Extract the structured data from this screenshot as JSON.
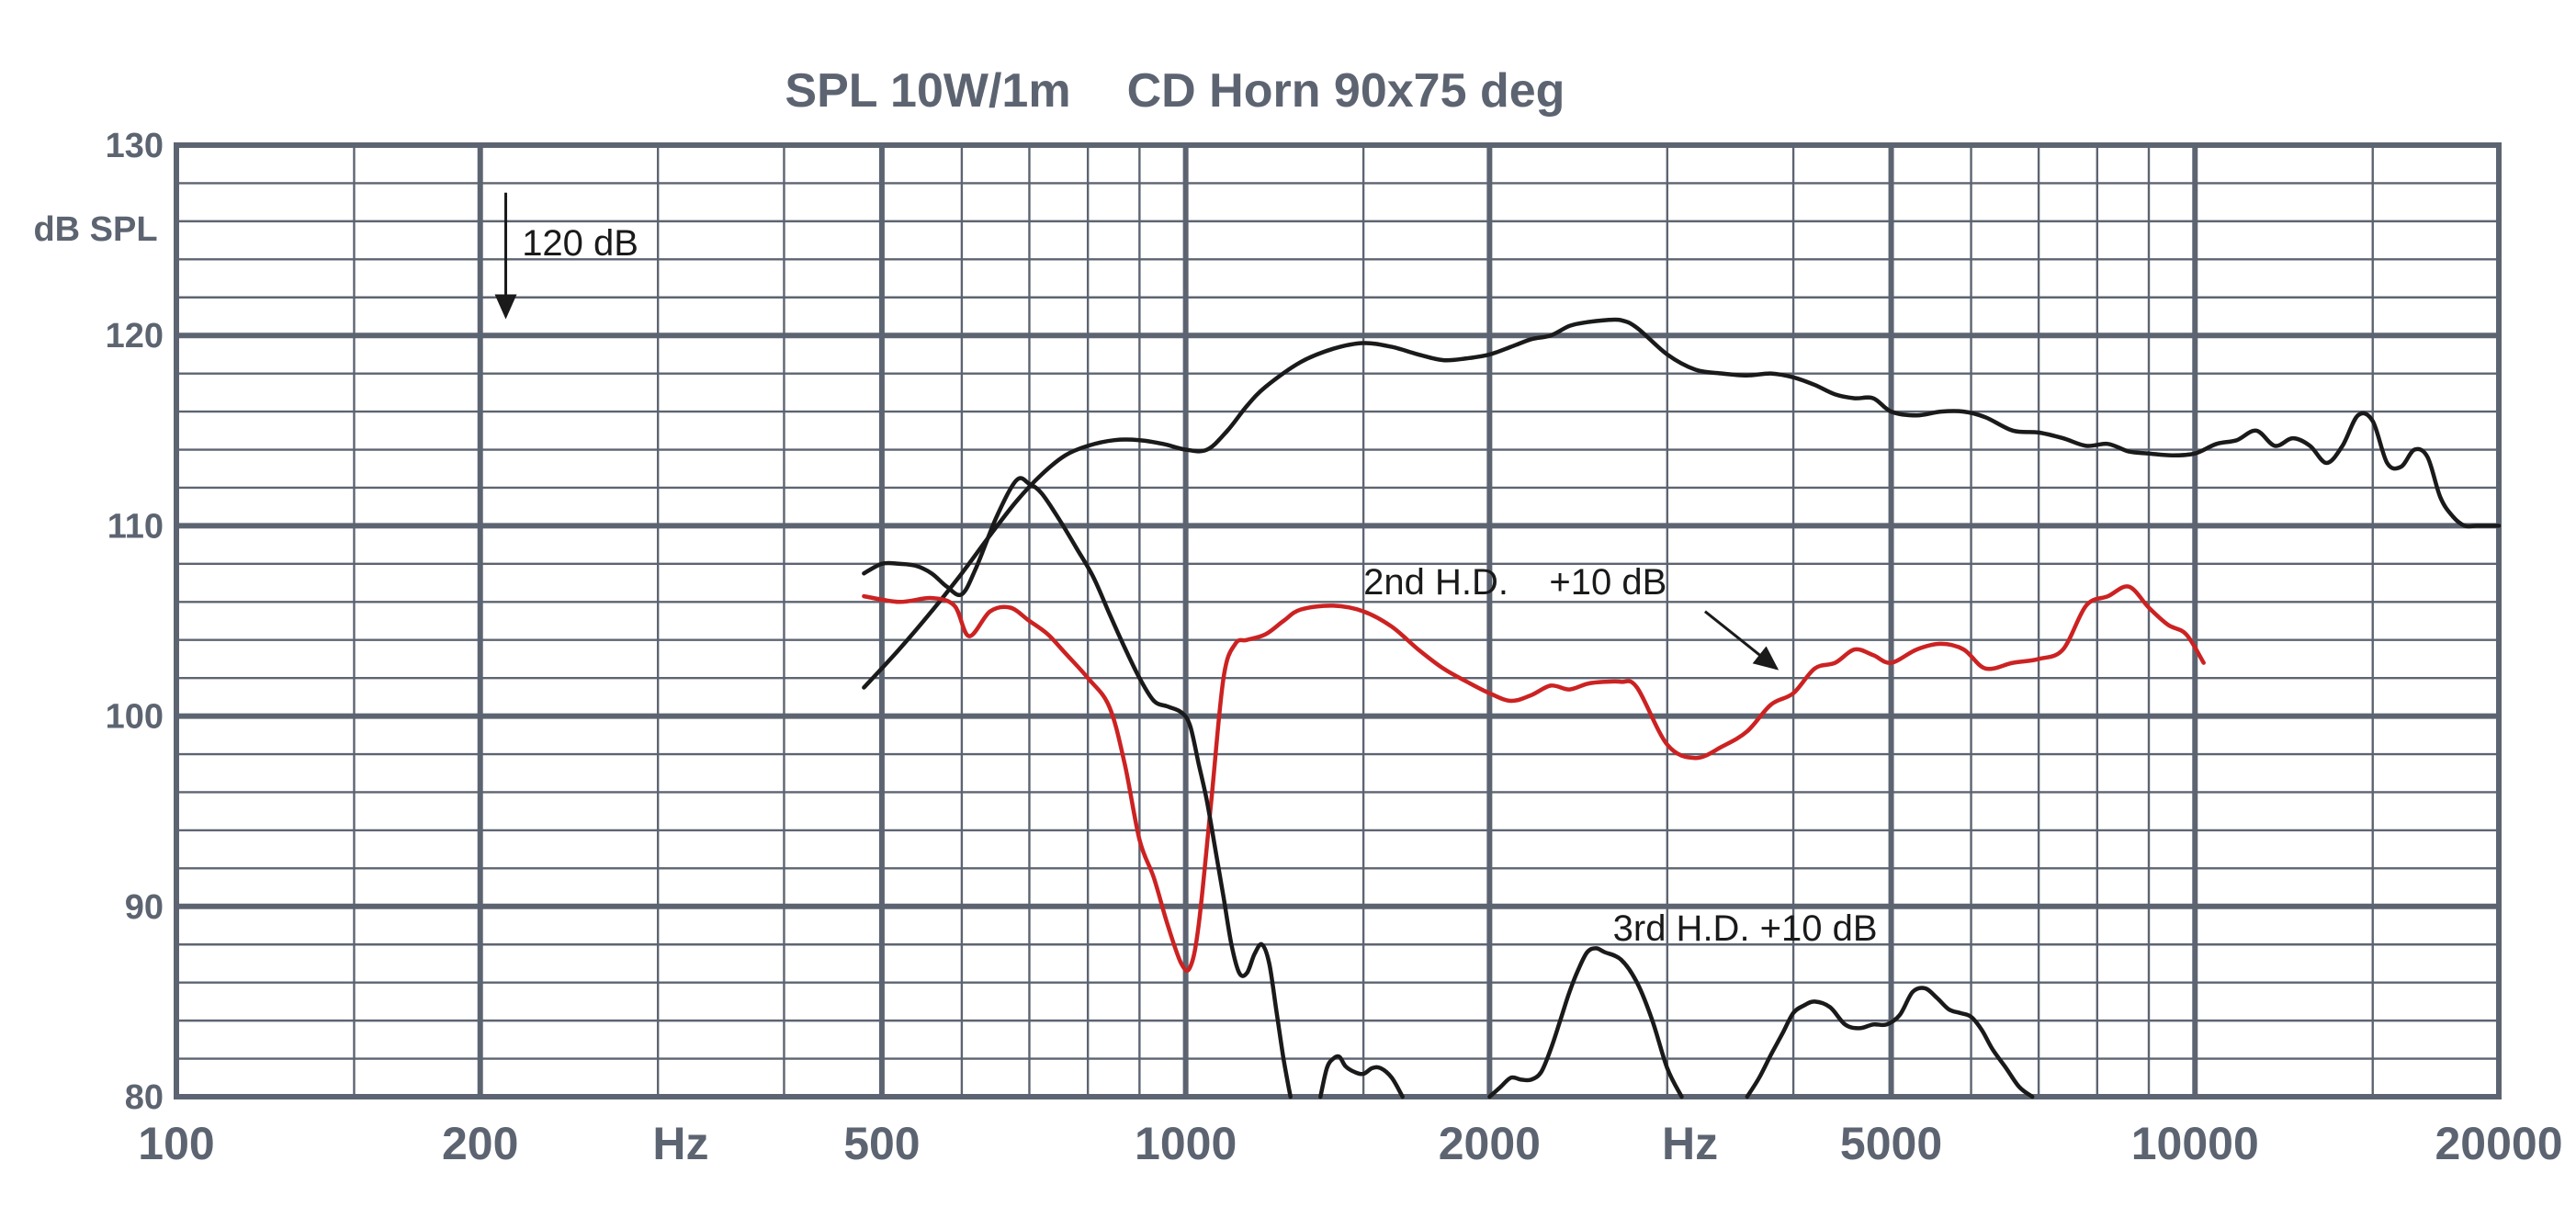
{
  "chart_data": {
    "type": "line",
    "title": "SPL 10W/1m",
    "subtitle": "CD Horn 90x75 deg",
    "xlabel": "Hz",
    "ylabel": "dB SPL",
    "xscale": "log",
    "xlim": [
      100,
      20000
    ],
    "ylim": [
      80,
      130
    ],
    "xticks": [
      {
        "v": 100,
        "label": "100"
      },
      {
        "v": 200,
        "label": "200"
      },
      {
        "v": 500,
        "label": "500"
      },
      {
        "v": 1000,
        "label": "1000"
      },
      {
        "v": 2000,
        "label": "2000"
      },
      {
        "v": 5000,
        "label": "5000"
      },
      {
        "v": 10000,
        "label": "10000"
      },
      {
        "v": 20000,
        "label": "20000"
      }
    ],
    "xunit_labels": [
      {
        "v": 316,
        "label": "Hz"
      },
      {
        "v": 3160,
        "label": "Hz"
      }
    ],
    "yticks": [
      {
        "v": 130,
        "label": "130"
      },
      {
        "v": 120,
        "label": "120"
      },
      {
        "v": 110,
        "label": "110"
      },
      {
        "v": 100,
        "label": "100"
      },
      {
        "v": 90,
        "label": "90"
      },
      {
        "v": 80,
        "label": "80"
      }
    ],
    "grid": true,
    "annotations": [
      {
        "text": "120 dB",
        "x": 220,
        "y": 124.2,
        "arrow_from": [
          212,
          127.5
        ],
        "arrow_to": [
          212,
          121.0
        ]
      },
      {
        "text": "2nd H.D.    +10 dB",
        "x": 1500,
        "y": 106.4,
        "arrow_from": [
          3270,
          105.5
        ],
        "arrow_to": [
          3850,
          102.5
        ]
      },
      {
        "text": "3rd H.D. +10 dB",
        "x": 2650,
        "y": 88.2
      }
    ],
    "series": [
      {
        "color": "#1a1a1a",
        "x": [
          480,
          520,
          560,
          600,
          640,
          680,
          720,
          760,
          800,
          850,
          900,
          950,
          1000,
          1050,
          1100,
          1150,
          1200,
          1300,
          1400,
          1500,
          1600,
          1700,
          1800,
          1900,
          2000,
          2100,
          2200,
          2300,
          2400,
          2500,
          2600,
          2700,
          2800,
          3000,
          3200,
          3400,
          3600,
          3800,
          4000,
          4200,
          4400,
          4600,
          4800,
          5000,
          5300,
          5600,
          5900,
          6200,
          6600,
          7000,
          7400,
          7800,
          8200,
          8600,
          9000,
          9500,
          10000,
          10500,
          11000,
          11500,
          12000,
          12500,
          13000,
          13500,
          14000,
          14500,
          15000,
          15500,
          16000,
          16500,
          17000,
          17500,
          18000,
          18500,
          19000,
          19500,
          20000
        ],
        "y": [
          101.5,
          103.5,
          105.5,
          107.5,
          109.5,
          111.3,
          112.7,
          113.7,
          114.2,
          114.5,
          114.5,
          114.3,
          114.0,
          114.0,
          115.0,
          116.3,
          117.3,
          118.6,
          119.3,
          119.6,
          119.4,
          119.0,
          118.7,
          118.8,
          119.0,
          119.4,
          119.8,
          120.0,
          120.5,
          120.7,
          120.8,
          120.8,
          120.4,
          119.0,
          118.2,
          118.0,
          117.9,
          118.0,
          117.8,
          117.4,
          116.9,
          116.7,
          116.7,
          116.0,
          115.8,
          116.0,
          116.0,
          115.7,
          115.0,
          114.9,
          114.6,
          114.2,
          114.3,
          113.9,
          113.8,
          113.7,
          113.8,
          114.3,
          114.5,
          115.0,
          114.2,
          114.6,
          114.2,
          113.3,
          114.2,
          115.8,
          115.5,
          113.3,
          113.1,
          114.0,
          113.6,
          111.5,
          110.5,
          110.0,
          110.0,
          110.0,
          110.0
        ]
      },
      {
        "color": "#cc2222",
        "x": [
          480,
          520,
          560,
          590,
          610,
          640,
          670,
          700,
          730,
          760,
          800,
          840,
          870,
          900,
          930,
          960,
          990,
          1010,
          1030,
          1060,
          1090,
          1120,
          1150,
          1200,
          1250,
          1300,
          1400,
          1500,
          1600,
          1700,
          1800,
          1900,
          2000,
          2100,
          2200,
          2300,
          2400,
          2500,
          2600,
          2700,
          2800,
          3000,
          3200,
          3400,
          3600,
          3800,
          4000,
          4200,
          4400,
          4600,
          4800,
          5000,
          5300,
          5600,
          5900,
          6200,
          6600,
          7000,
          7400,
          7800,
          8200,
          8600,
          9000,
          9400,
          9800,
          10200
        ],
        "y": [
          106.3,
          106.0,
          106.2,
          105.8,
          104.2,
          105.5,
          105.7,
          105.0,
          104.3,
          103.3,
          102.0,
          100.5,
          97.5,
          93.5,
          91.5,
          89.0,
          87.0,
          86.8,
          89.0,
          95.5,
          102.0,
          103.8,
          104.0,
          104.3,
          105.0,
          105.6,
          105.8,
          105.5,
          104.7,
          103.5,
          102.5,
          101.8,
          101.2,
          100.8,
          101.1,
          101.6,
          101.4,
          101.7,
          101.8,
          101.8,
          101.5,
          98.5,
          97.8,
          98.4,
          99.2,
          100.6,
          101.2,
          102.5,
          102.8,
          103.5,
          103.2,
          102.8,
          103.5,
          103.8,
          103.5,
          102.5,
          102.8,
          103.0,
          103.5,
          105.8,
          106.3,
          106.8,
          105.7,
          104.8,
          104.3,
          102.8
        ]
      },
      {
        "color": "#1a1a1a",
        "x": [
          480,
          500,
          520,
          540,
          560,
          580,
          600,
          620,
          650,
          680,
          700,
          720,
          750,
          780,
          810,
          840,
          870,
          900,
          930,
          960,
          990,
          1010,
          1030,
          1050,
          1070,
          1090,
          1110,
          1130,
          1150,
          1170,
          1190,
          1210,
          1230,
          1250,
          1270
        ],
        "y": [
          107.5,
          108.0,
          108.0,
          107.9,
          107.5,
          106.8,
          106.4,
          107.8,
          110.5,
          112.4,
          112.2,
          111.7,
          110.3,
          108.8,
          107.3,
          105.4,
          103.6,
          102.0,
          100.8,
          100.5,
          100.2,
          99.5,
          97.5,
          95.5,
          93.0,
          90.5,
          88.0,
          86.5,
          86.5,
          87.5,
          88.0,
          87.0,
          84.5,
          82.0,
          80.0
        ]
      },
      {
        "color": "#1a1a1a",
        "x": [
          1360,
          1380,
          1400,
          1420,
          1440,
          1470,
          1500,
          1530,
          1560,
          1600,
          1640
        ],
        "y": [
          80.0,
          81.5,
          82.0,
          82.1,
          81.6,
          81.3,
          81.2,
          81.5,
          81.5,
          81.0,
          80.0
        ]
      },
      {
        "color": "#1a1a1a",
        "x": [
          2000,
          2050,
          2100,
          2150,
          2200,
          2250,
          2300,
          2350,
          2400,
          2450,
          2500,
          2550,
          2600,
          2700,
          2800,
          2900,
          3000,
          3100
        ],
        "y": [
          80.0,
          80.5,
          81.0,
          80.9,
          80.9,
          81.3,
          82.5,
          84.0,
          85.5,
          86.7,
          87.6,
          87.8,
          87.6,
          87.2,
          86.0,
          84.0,
          81.5,
          80.0
        ]
      },
      {
        "color": "#1a1a1a",
        "x": [
          3600,
          3700,
          3800,
          3900,
          4000,
          4100,
          4200,
          4350,
          4500,
          4650,
          4800,
          4950,
          5100,
          5250,
          5400,
          5550,
          5700,
          5850,
          6000,
          6150,
          6300,
          6500,
          6700,
          6900
        ],
        "y": [
          80.0,
          81.0,
          82.2,
          83.3,
          84.4,
          84.8,
          85.0,
          84.7,
          83.8,
          83.6,
          83.8,
          83.8,
          84.3,
          85.5,
          85.7,
          85.2,
          84.6,
          84.4,
          84.2,
          83.5,
          82.5,
          81.5,
          80.5,
          80.0
        ]
      }
    ]
  }
}
